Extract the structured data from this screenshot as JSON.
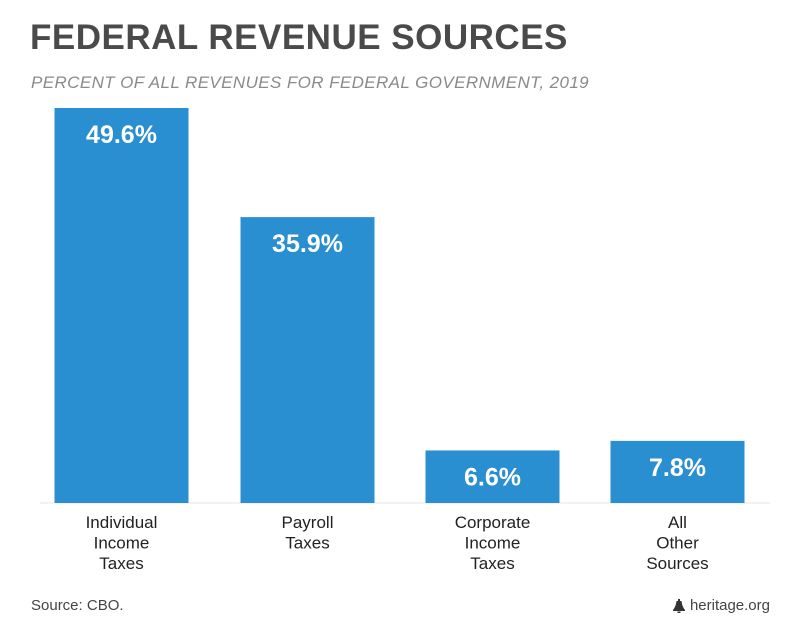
{
  "chart_data": {
    "type": "bar",
    "title": "FEDERAL REVENUE SOURCES",
    "subtitle": "PERCENT OF ALL REVENUES FOR FEDERAL GOVERNMENT, 2019",
    "categories": [
      [
        "Individual",
        "Income",
        "Taxes"
      ],
      [
        "Payroll",
        "Taxes"
      ],
      [
        "Corporate",
        "Income",
        "Taxes"
      ],
      [
        "All",
        "Other",
        "Sources"
      ]
    ],
    "values": [
      49.6,
      35.9,
      6.6,
      7.8
    ],
    "value_labels": [
      "49.6%",
      "35.9%",
      "6.6%",
      "7.8%"
    ],
    "ylim": [
      0,
      50
    ],
    "grid": false,
    "bar_color": "#2a8fd0",
    "label_color": "#ffffff"
  },
  "footer": {
    "source": "Source: CBO.",
    "brand": "heritage.org",
    "brand_icon": "liberty-bell-icon"
  }
}
